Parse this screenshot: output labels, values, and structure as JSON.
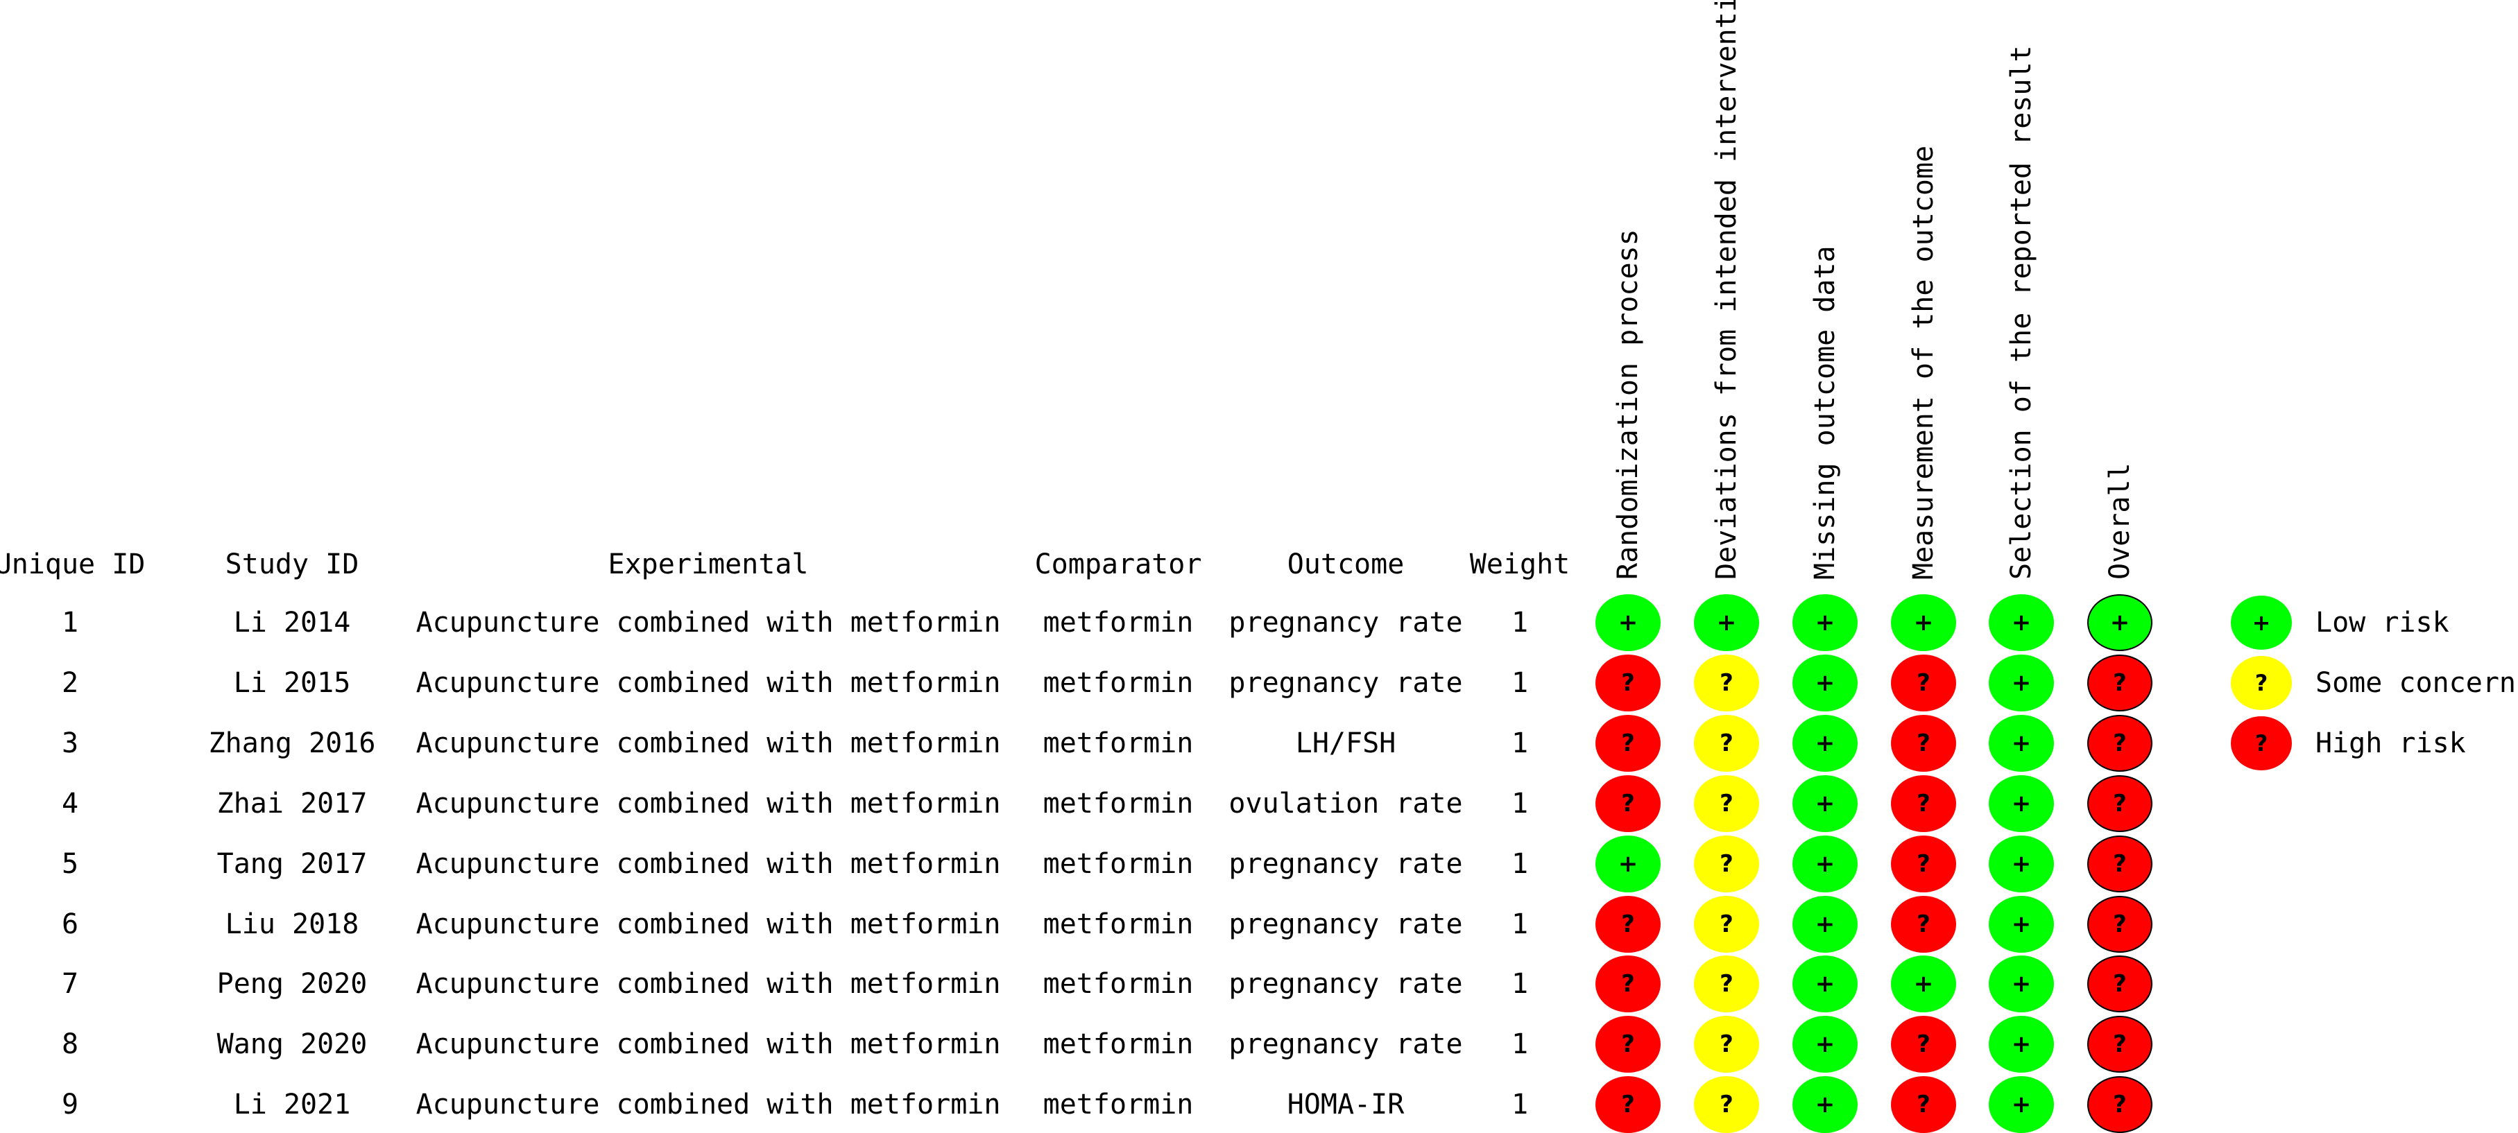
{
  "headers": {
    "unique_id": "Unique ID",
    "study_id": "Study ID",
    "experimental": "Experimental",
    "comparator": "Comparator",
    "outcome": "Outcome",
    "weight": "Weight"
  },
  "domains": [
    "Randomization process",
    "Deviations from intended interventions",
    "Missing outcome data",
    "Measurement of the outcome",
    "Selection of the reported result",
    "Overall"
  ],
  "symbols": {
    "low": "+",
    "some": "?",
    "high": "?"
  },
  "colors": {
    "low": "#00ff00",
    "some": "#ffff00",
    "high": "#ff0000"
  },
  "rows": [
    {
      "id": "1",
      "study": "Li 2014",
      "experimental": "Acupuncture combined with metformin",
      "comparator": "metformin",
      "outcome": "pregnancy rate",
      "weight": "1",
      "judgements": [
        "low",
        "low",
        "low",
        "low",
        "low",
        "low"
      ]
    },
    {
      "id": "2",
      "study": "Li 2015",
      "experimental": "Acupuncture combined with metformin",
      "comparator": "metformin",
      "outcome": "pregnancy rate",
      "weight": "1",
      "judgements": [
        "high",
        "some",
        "low",
        "high",
        "low",
        "high"
      ]
    },
    {
      "id": "3",
      "study": "Zhang 2016",
      "experimental": "Acupuncture combined with metformin",
      "comparator": "metformin",
      "outcome": "LH/FSH",
      "weight": "1",
      "judgements": [
        "high",
        "some",
        "low",
        "high",
        "low",
        "high"
      ]
    },
    {
      "id": "4",
      "study": "Zhai 2017",
      "experimental": "Acupuncture combined with metformin",
      "comparator": "metformin",
      "outcome": "ovulation rate",
      "weight": "1",
      "judgements": [
        "high",
        "some",
        "low",
        "high",
        "low",
        "high"
      ]
    },
    {
      "id": "5",
      "study": "Tang 2017",
      "experimental": "Acupuncture combined with metformin",
      "comparator": "metformin",
      "outcome": "pregnancy rate",
      "weight": "1",
      "judgements": [
        "low",
        "some",
        "low",
        "high",
        "low",
        "high"
      ]
    },
    {
      "id": "6",
      "study": "Liu 2018",
      "experimental": "Acupuncture combined with metformin",
      "comparator": "metformin",
      "outcome": "pregnancy rate",
      "weight": "1",
      "judgements": [
        "high",
        "some",
        "low",
        "high",
        "low",
        "high"
      ]
    },
    {
      "id": "7",
      "study": "Peng 2020",
      "experimental": "Acupuncture combined with metformin",
      "comparator": "metformin",
      "outcome": "pregnancy rate",
      "weight": "1",
      "judgements": [
        "high",
        "some",
        "low",
        "low",
        "low",
        "high"
      ]
    },
    {
      "id": "8",
      "study": "Wang 2020",
      "experimental": "Acupuncture combined with metformin",
      "comparator": "metformin",
      "outcome": "pregnancy rate",
      "weight": "1",
      "judgements": [
        "high",
        "some",
        "low",
        "high",
        "low",
        "high"
      ]
    },
    {
      "id": "9",
      "study": "Li 2021",
      "experimental": "Acupuncture combined with metformin",
      "comparator": "metformin",
      "outcome": "HOMA-IR",
      "weight": "1",
      "judgements": [
        "high",
        "some",
        "low",
        "high",
        "low",
        "high"
      ]
    }
  ],
  "legend": [
    {
      "key": "low",
      "label": "Low risk"
    },
    {
      "key": "some",
      "label": "Some concerns"
    },
    {
      "key": "high",
      "label": "High risk"
    }
  ]
}
